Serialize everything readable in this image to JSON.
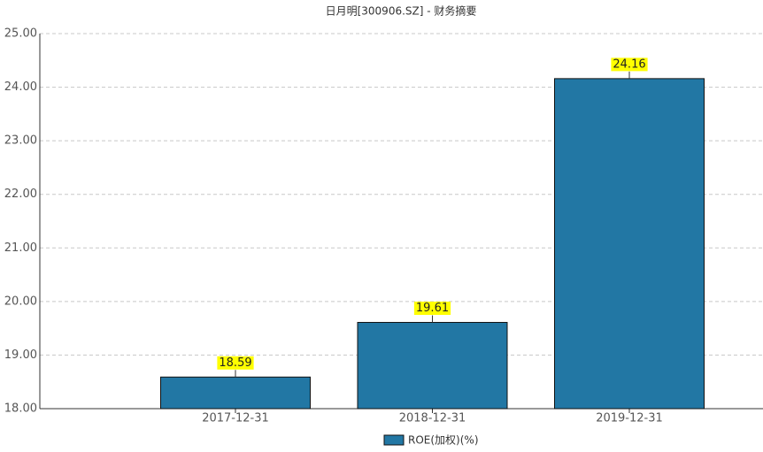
{
  "chart_data": {
    "type": "bar",
    "title": "日月明[300906.SZ] - 财务摘要",
    "categories": [
      "2017-12-31",
      "2018-12-31",
      "2019-12-31"
    ],
    "series": [
      {
        "name": "ROE(加权)(%)",
        "color": "#2277a4",
        "values": [
          18.59,
          19.61,
          24.16
        ]
      }
    ],
    "ylim": [
      18,
      25
    ],
    "yticks": [
      {
        "value": 18,
        "label": "18.00"
      },
      {
        "value": 19,
        "label": "19.00"
      },
      {
        "value": 20,
        "label": "20.00"
      },
      {
        "value": 21,
        "label": "21.00"
      },
      {
        "value": 22,
        "label": "22.00"
      },
      {
        "value": 23,
        "label": "23.00"
      },
      {
        "value": 24,
        "label": "24.00"
      },
      {
        "value": 25,
        "label": "25.00"
      }
    ],
    "grid": true
  }
}
